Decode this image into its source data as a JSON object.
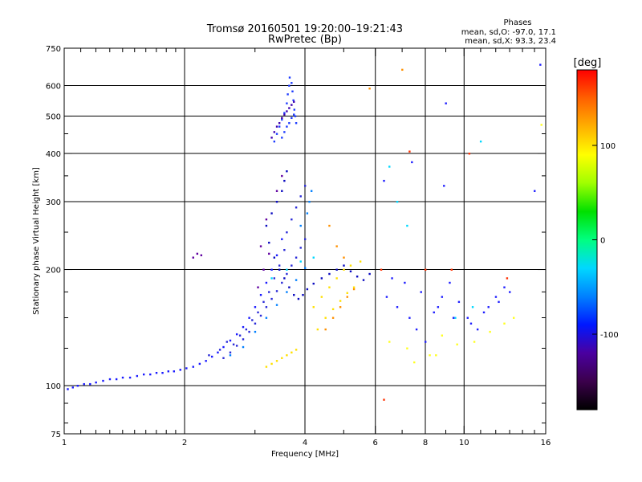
{
  "chart_data": {
    "type": "scatter",
    "title": "Tromsø 20160501 19:20:00–19:21:43",
    "subtitle": "RwPretec (Bp)",
    "xlabel": "Frequency [MHz]",
    "ylabel": "Stationary phase Virtual Height [km]",
    "x_scale": "log",
    "y_scale": "log",
    "xlim": [
      1,
      16
    ],
    "ylim": [
      75,
      750
    ],
    "x_ticks": [
      1,
      2,
      4,
      6,
      8,
      10,
      16
    ],
    "x_tick_labels": [
      "1",
      "2",
      "4",
      "6",
      "8",
      "10",
      "16"
    ],
    "x_minor_ticks": [
      1.1,
      1.2,
      1.3,
      1.4,
      1.5,
      1.6,
      1.7,
      1.8,
      1.9,
      3,
      5,
      7,
      9,
      11,
      12,
      13,
      14,
      15
    ],
    "y_ticks": [
      75,
      100,
      200,
      300,
      400,
      500,
      600,
      750
    ],
    "y_tick_labels": [
      "75",
      "100",
      "200",
      "300",
      "400",
      "500",
      "600",
      "750"
    ],
    "y_minor_ticks": [
      80,
      90,
      125,
      150,
      175,
      250,
      350,
      450
    ],
    "x_grid": [
      2,
      4,
      6,
      8,
      10
    ],
    "y_grid": [
      100,
      200,
      300,
      400,
      500,
      600
    ],
    "phase_stats": {
      "heading": "Phases",
      "line_o": "mean, sd,O: -97.0, 17.1",
      "line_x": "mean, sd,X:  93.3, 23.4"
    },
    "colorbar": {
      "unit_label": "[deg]",
      "range": [
        -180,
        180
      ],
      "tick_values": [
        100,
        0,
        -100
      ],
      "tick_labels": [
        "100",
        "0",
        "-100"
      ],
      "colors": [
        "#000000",
        "#3b004b",
        "#4a00a0",
        "#0018ff",
        "#0080ff",
        "#00d8ff",
        "#00ff80",
        "#00e000",
        "#a0ff00",
        "#ffff00",
        "#ffb000",
        "#ff6000",
        "#ff0000"
      ]
    },
    "series": [
      {
        "name": "",
        "color": "#1a1aff",
        "points": [
          [
            1.02,
            98
          ],
          [
            1.05,
            99
          ],
          [
            1.08,
            100
          ],
          [
            1.12,
            101
          ],
          [
            1.16,
            101
          ],
          [
            1.2,
            102
          ],
          [
            1.25,
            103
          ],
          [
            1.3,
            104
          ],
          [
            1.35,
            104
          ],
          [
            1.4,
            105
          ],
          [
            1.46,
            105
          ],
          [
            1.52,
            106
          ],
          [
            1.58,
            107
          ],
          [
            1.64,
            107
          ],
          [
            1.7,
            108
          ],
          [
            1.76,
            108
          ],
          [
            1.82,
            109
          ],
          [
            1.88,
            109
          ],
          [
            1.95,
            110
          ],
          [
            2.02,
            111
          ],
          [
            2.1,
            112
          ],
          [
            2.18,
            114
          ],
          [
            2.26,
            116
          ],
          [
            2.34,
            119
          ],
          [
            2.42,
            122
          ],
          [
            2.5,
            126
          ],
          [
            2.6,
            131
          ],
          [
            2.7,
            136
          ],
          [
            2.8,
            142
          ],
          [
            2.9,
            150
          ],
          [
            3.0,
            160
          ],
          [
            3.1,
            172
          ],
          [
            3.2,
            185
          ],
          [
            3.3,
            200
          ],
          [
            3.4,
            218
          ],
          [
            3.5,
            240
          ]
        ]
      },
      {
        "name": "",
        "color": "#2b2bd8",
        "points": [
          [
            2.3,
            120
          ],
          [
            2.45,
            124
          ],
          [
            2.55,
            130
          ],
          [
            2.65,
            128
          ],
          [
            2.75,
            135
          ],
          [
            2.85,
            140
          ],
          [
            2.95,
            148
          ],
          [
            3.05,
            155
          ],
          [
            3.15,
            165
          ],
          [
            3.25,
            175
          ],
          [
            3.35,
            190
          ],
          [
            3.45,
            205
          ],
          [
            3.55,
            225
          ],
          [
            3.6,
            250
          ],
          [
            3.7,
            270
          ],
          [
            3.8,
            290
          ],
          [
            3.9,
            310
          ],
          [
            4.0,
            330
          ],
          [
            2.5,
            118
          ],
          [
            2.6,
            122
          ],
          [
            2.7,
            127
          ],
          [
            2.8,
            132
          ],
          [
            2.9,
            138
          ],
          [
            3.0,
            145
          ],
          [
            3.1,
            152
          ],
          [
            3.2,
            160
          ],
          [
            3.3,
            168
          ],
          [
            3.4,
            176
          ],
          [
            3.5,
            185
          ],
          [
            3.6,
            195
          ],
          [
            3.7,
            205
          ],
          [
            3.8,
            215
          ],
          [
            3.9,
            228
          ],
          [
            4.0,
            240
          ]
        ]
      },
      {
        "name": "",
        "color": "#0a0ac0",
        "points": [
          [
            3.2,
            260
          ],
          [
            3.3,
            280
          ],
          [
            3.4,
            300
          ],
          [
            3.5,
            320
          ],
          [
            3.55,
            340
          ],
          [
            3.6,
            360
          ],
          [
            3.25,
            235
          ],
          [
            3.35,
            215
          ],
          [
            3.45,
            200
          ],
          [
            3.55,
            190
          ],
          [
            3.65,
            180
          ],
          [
            3.75,
            172
          ],
          [
            3.85,
            168
          ],
          [
            3.95,
            172
          ],
          [
            4.05,
            178
          ],
          [
            4.2,
            184
          ],
          [
            4.4,
            190
          ],
          [
            4.6,
            195
          ],
          [
            4.8,
            200
          ],
          [
            5.0,
            205
          ],
          [
            5.2,
            198
          ],
          [
            5.4,
            192
          ],
          [
            5.6,
            188
          ],
          [
            5.8,
            195
          ]
        ]
      },
      {
        "name": "",
        "color": "#1e3cff",
        "points": [
          [
            3.35,
            430
          ],
          [
            3.4,
            450
          ],
          [
            3.45,
            470
          ],
          [
            3.5,
            490
          ],
          [
            3.55,
            510
          ],
          [
            3.6,
            540
          ],
          [
            3.62,
            570
          ],
          [
            3.65,
            600
          ],
          [
            3.66,
            630
          ],
          [
            3.7,
            610
          ],
          [
            3.72,
            580
          ],
          [
            3.74,
            550
          ],
          [
            3.76,
            520
          ],
          [
            3.78,
            500
          ],
          [
            3.8,
            480
          ],
          [
            3.5,
            440
          ],
          [
            3.55,
            455
          ],
          [
            3.6,
            470
          ],
          [
            3.65,
            480
          ],
          [
            3.7,
            495
          ],
          [
            3.75,
            505
          ]
        ]
      },
      {
        "name": "",
        "color": "#3c00b0",
        "points": [
          [
            3.3,
            440
          ],
          [
            3.35,
            455
          ],
          [
            3.4,
            470
          ],
          [
            3.45,
            480
          ],
          [
            3.5,
            495
          ],
          [
            3.55,
            505
          ],
          [
            3.6,
            515
          ],
          [
            3.65,
            525
          ],
          [
            3.7,
            535
          ],
          [
            3.75,
            545
          ]
        ]
      },
      {
        "name": "",
        "color": "#0080ff",
        "points": [
          [
            2.6,
            120
          ],
          [
            2.8,
            126
          ],
          [
            3.0,
            138
          ],
          [
            3.2,
            150
          ],
          [
            3.4,
            162
          ],
          [
            3.6,
            175
          ],
          [
            3.8,
            188
          ],
          [
            4.0,
            202
          ],
          [
            3.9,
            260
          ],
          [
            4.05,
            280
          ],
          [
            4.1,
            300
          ],
          [
            4.15,
            320
          ]
        ]
      },
      {
        "name": "",
        "color": "#ffe000",
        "points": [
          [
            3.2,
            112
          ],
          [
            3.3,
            114
          ],
          [
            3.4,
            116
          ],
          [
            3.5,
            118
          ],
          [
            3.6,
            120
          ],
          [
            3.7,
            122
          ],
          [
            3.8,
            124
          ],
          [
            4.2,
            160
          ],
          [
            4.4,
            170
          ],
          [
            4.6,
            180
          ],
          [
            4.8,
            190
          ],
          [
            5.0,
            200
          ],
          [
            5.2,
            205
          ],
          [
            5.5,
            210
          ],
          [
            4.3,
            140
          ],
          [
            4.5,
            150
          ],
          [
            4.7,
            158
          ],
          [
            4.9,
            166
          ],
          [
            5.1,
            174
          ],
          [
            5.3,
            180
          ]
        ]
      },
      {
        "name": "",
        "color": "#ff9000",
        "points": [
          [
            4.5,
            140
          ],
          [
            4.7,
            150
          ],
          [
            4.9,
            160
          ],
          [
            5.1,
            170
          ],
          [
            5.3,
            178
          ],
          [
            4.6,
            260
          ],
          [
            4.8,
            230
          ],
          [
            5.0,
            215
          ],
          [
            7.0,
            660
          ],
          [
            5.8,
            590
          ]
        ]
      },
      {
        "name": "",
        "color": "#00d8ff",
        "points": [
          [
            3.3,
            190
          ],
          [
            3.6,
            200
          ],
          [
            3.9,
            210
          ],
          [
            4.2,
            215
          ],
          [
            6.5,
            370
          ],
          [
            6.8,
            300
          ],
          [
            7.2,
            260
          ],
          [
            9.5,
            150
          ],
          [
            10.5,
            160
          ],
          [
            11.0,
            430
          ]
        ]
      },
      {
        "name": "",
        "color": "#2020ff",
        "points": [
          [
            6.4,
            170
          ],
          [
            6.8,
            160
          ],
          [
            7.3,
            150
          ],
          [
            7.6,
            140
          ],
          [
            8.0,
            130
          ],
          [
            8.4,
            155
          ],
          [
            8.8,
            170
          ],
          [
            9.2,
            185
          ],
          [
            9.7,
            165
          ],
          [
            10.2,
            150
          ],
          [
            10.8,
            140
          ],
          [
            11.5,
            160
          ],
          [
            12.0,
            170
          ],
          [
            12.6,
            180
          ],
          [
            13.0,
            175
          ],
          [
            6.6,
            190
          ],
          [
            7.1,
            185
          ],
          [
            7.8,
            175
          ],
          [
            8.6,
            160
          ],
          [
            9.4,
            150
          ],
          [
            10.4,
            145
          ],
          [
            11.2,
            155
          ],
          [
            12.2,
            165
          ],
          [
            8.9,
            330
          ],
          [
            9.0,
            540
          ],
          [
            15.5,
            680
          ],
          [
            7.4,
            380
          ],
          [
            6.3,
            340
          ],
          [
            15.0,
            320
          ]
        ]
      },
      {
        "name": "",
        "color": "#ffff20",
        "points": [
          [
            6.5,
            130
          ],
          [
            7.2,
            125
          ],
          [
            8.2,
            120
          ],
          [
            8.8,
            135
          ],
          [
            9.6,
            128
          ],
          [
            10.6,
            130
          ],
          [
            11.6,
            138
          ],
          [
            12.6,
            145
          ],
          [
            13.3,
            150
          ],
          [
            15.6,
            475
          ],
          [
            8.5,
            120
          ],
          [
            7.5,
            115
          ]
        ]
      },
      {
        "name": "",
        "color": "#ff3000",
        "points": [
          [
            6.3,
            92
          ],
          [
            8.0,
            200
          ],
          [
            9.3,
            200
          ],
          [
            10.3,
            400
          ],
          [
            12.8,
            190
          ],
          [
            6.2,
            200
          ],
          [
            7.3,
            405
          ]
        ]
      },
      {
        "name": "",
        "color": "#6000a0",
        "points": [
          [
            3.1,
            230
          ],
          [
            3.2,
            270
          ],
          [
            3.4,
            320
          ],
          [
            3.5,
            350
          ],
          [
            3.05,
            180
          ],
          [
            3.15,
            200
          ],
          [
            3.25,
            220
          ],
          [
            2.1,
            215
          ],
          [
            2.15,
            220
          ],
          [
            2.2,
            218
          ]
        ]
      }
    ]
  }
}
